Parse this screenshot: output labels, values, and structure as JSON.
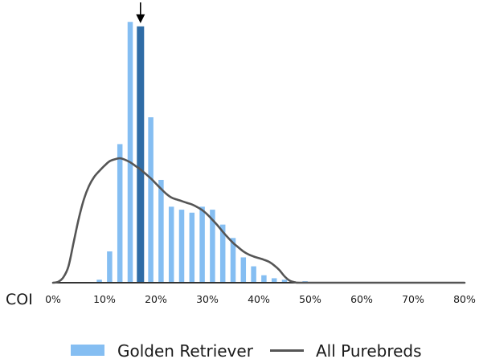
{
  "chart_data": {
    "type": "bar",
    "xlabel": "COI",
    "xlim": [
      0,
      80
    ],
    "ylim": [
      0,
      18
    ],
    "xticks": [
      0,
      10,
      20,
      30,
      40,
      50,
      60,
      70,
      80
    ],
    "xtick_labels": [
      "0%",
      "10%",
      "20%",
      "30%",
      "40%",
      "50%",
      "60%",
      "70%",
      "80%"
    ],
    "grid": false,
    "legend_position": "bottom",
    "series": [
      {
        "name": "Golden Retriever",
        "type": "bar",
        "color": "#85bef2",
        "x": [
          9,
          11,
          13,
          15,
          17,
          19,
          21,
          23,
          25,
          27,
          29,
          31,
          33,
          35,
          37,
          39,
          41,
          43,
          45,
          47,
          49
        ],
        "values": [
          0.2,
          2.1,
          9.3,
          17.5,
          17.2,
          11.1,
          6.9,
          5.1,
          4.9,
          4.7,
          5.1,
          4.9,
          3.9,
          3.0,
          1.7,
          1.1,
          0.5,
          0.3,
          0.2,
          0.05,
          0.1
        ]
      },
      {
        "name": "All Purebreds",
        "type": "line",
        "color": "#555555",
        "x": [
          0,
          1,
          2,
          3,
          4,
          5,
          6,
          7,
          8,
          9,
          10,
          11,
          12,
          13,
          14,
          15,
          16,
          17,
          18,
          19,
          20,
          21,
          22,
          23,
          24,
          25,
          26,
          27,
          28,
          29,
          30,
          31,
          32,
          33,
          34,
          35,
          36,
          37,
          38,
          39,
          40,
          41,
          42,
          43,
          44,
          45,
          46,
          47,
          48,
          80
        ],
        "values": [
          0,
          0.06,
          0.36,
          1.1,
          2.7,
          4.3,
          5.6,
          6.5,
          7.1,
          7.5,
          7.85,
          8.15,
          8.28,
          8.35,
          8.25,
          8.08,
          7.84,
          7.6,
          7.3,
          7.0,
          6.65,
          6.3,
          5.97,
          5.72,
          5.59,
          5.48,
          5.36,
          5.25,
          5.08,
          4.87,
          4.58,
          4.22,
          3.84,
          3.42,
          3.03,
          2.67,
          2.38,
          2.1,
          1.9,
          1.76,
          1.65,
          1.54,
          1.4,
          1.16,
          0.85,
          0.43,
          0.14,
          0.03,
          0,
          0
        ]
      }
    ],
    "highlight": {
      "x": 17,
      "color": "#2f6ca6"
    },
    "annotations": [
      {
        "type": "arrow",
        "x": 17,
        "color": "#000000"
      }
    ]
  }
}
